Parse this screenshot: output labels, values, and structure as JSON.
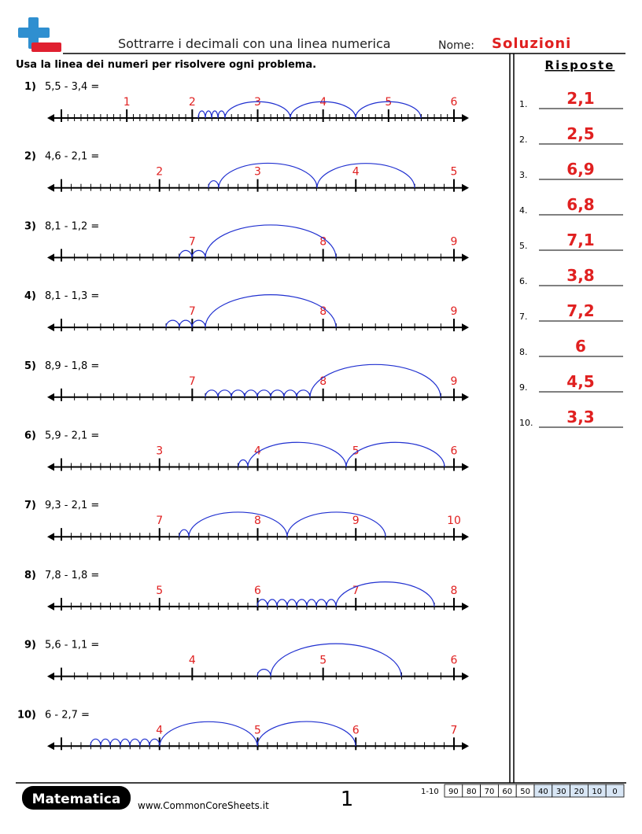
{
  "header": {
    "title": "Sottrarre i decimali con una linea numerica",
    "name_label": "Nome:",
    "name_value": "Soluzioni",
    "instructions": "Usa la linea dei numeri per risolvere ogni problema.",
    "answers_title": "Risposte"
  },
  "problems": [
    {
      "number": "1)",
      "expression": "5,5 - 3,4 =",
      "labels": [
        "1",
        "2",
        "3",
        "4",
        "5",
        "6"
      ]
    },
    {
      "number": "2)",
      "expression": "4,6 - 2,1 =",
      "labels": [
        "2",
        "3",
        "4",
        "5"
      ]
    },
    {
      "number": "3)",
      "expression": "8,1 - 1,2 =",
      "labels": [
        "7",
        "8",
        "9"
      ]
    },
    {
      "number": "4)",
      "expression": "8,1 - 1,3 =",
      "labels": [
        "7",
        "8",
        "9"
      ]
    },
    {
      "number": "5)",
      "expression": "8,9 - 1,8 =",
      "labels": [
        "7",
        "8",
        "9"
      ]
    },
    {
      "number": "6)",
      "expression": "5,9 - 2,1 =",
      "labels": [
        "3",
        "4",
        "5",
        "6"
      ]
    },
    {
      "number": "7)",
      "expression": "9,3 - 2,1 =",
      "labels": [
        "7",
        "8",
        "9",
        "10"
      ]
    },
    {
      "number": "8)",
      "expression": "7,8 - 1,8 =",
      "labels": [
        "5",
        "6",
        "7",
        "8"
      ]
    },
    {
      "number": "9)",
      "expression": "5,6 - 1,1 =",
      "labels": [
        "4",
        "5",
        "6"
      ]
    },
    {
      "number": "10)",
      "expression": "6 - 2,7 =",
      "labels": [
        "4",
        "5",
        "6",
        "7"
      ]
    }
  ],
  "answers": [
    {
      "number": "1.",
      "value": "2,1"
    },
    {
      "number": "2.",
      "value": "2,5"
    },
    {
      "number": "3.",
      "value": "6,9"
    },
    {
      "number": "4.",
      "value": "6,8"
    },
    {
      "number": "5.",
      "value": "7,1"
    },
    {
      "number": "6.",
      "value": "3,8"
    },
    {
      "number": "7.",
      "value": "7,2"
    },
    {
      "number": "8.",
      "value": "6"
    },
    {
      "number": "9.",
      "value": "4,5"
    },
    {
      "number": "10.",
      "value": "3,3"
    }
  ],
  "footer": {
    "brand": "Matematica",
    "url": "www.CommonCoreSheets.it",
    "page": "1",
    "score_range": "1-10",
    "scores": [
      "90",
      "80",
      "70",
      "60",
      "50",
      "40",
      "30",
      "20",
      "10",
      "0"
    ]
  }
}
